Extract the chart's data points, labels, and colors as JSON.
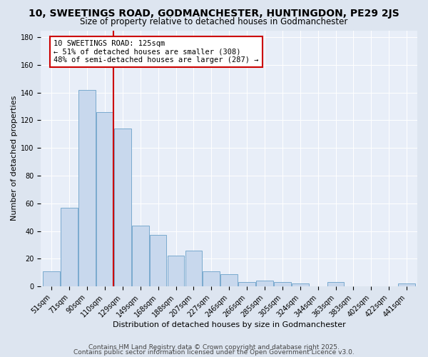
{
  "title": "10, SWEETINGS ROAD, GODMANCHESTER, HUNTINGDON, PE29 2JS",
  "subtitle": "Size of property relative to detached houses in Godmanchester",
  "xlabel": "Distribution of detached houses by size in Godmanchester",
  "ylabel": "Number of detached properties",
  "categories": [
    "51sqm",
    "71sqm",
    "90sqm",
    "110sqm",
    "129sqm",
    "149sqm",
    "168sqm",
    "188sqm",
    "207sqm",
    "227sqm",
    "246sqm",
    "266sqm",
    "285sqm",
    "305sqm",
    "324sqm",
    "344sqm",
    "363sqm",
    "383sqm",
    "402sqm",
    "422sqm",
    "441sqm"
  ],
  "values": [
    11,
    57,
    142,
    126,
    114,
    44,
    37,
    22,
    26,
    11,
    9,
    3,
    4,
    3,
    2,
    0,
    3,
    0,
    0,
    0,
    2
  ],
  "bar_color": "#c8d8ed",
  "bar_edge_color": "#7aaace",
  "highlight_line_color": "#cc0000",
  "annotation_text": "10 SWEETINGS ROAD: 125sqm\n← 51% of detached houses are smaller (308)\n48% of semi-detached houses are larger (287) →",
  "annotation_box_color": "#ffffff",
  "annotation_box_edge": "#cc0000",
  "ylim": [
    0,
    185
  ],
  "yticks": [
    0,
    20,
    40,
    60,
    80,
    100,
    120,
    140,
    160,
    180
  ],
  "footer1": "Contains HM Land Registry data © Crown copyright and database right 2025.",
  "footer2": "Contains public sector information licensed under the Open Government Licence v3.0.",
  "bg_color": "#dde5f0",
  "plot_bg_color": "#e8eef8",
  "title_fontsize": 10,
  "subtitle_fontsize": 8.5,
  "axis_label_fontsize": 8,
  "tick_fontsize": 7,
  "annotation_fontsize": 7.5,
  "footer_fontsize": 6.5
}
